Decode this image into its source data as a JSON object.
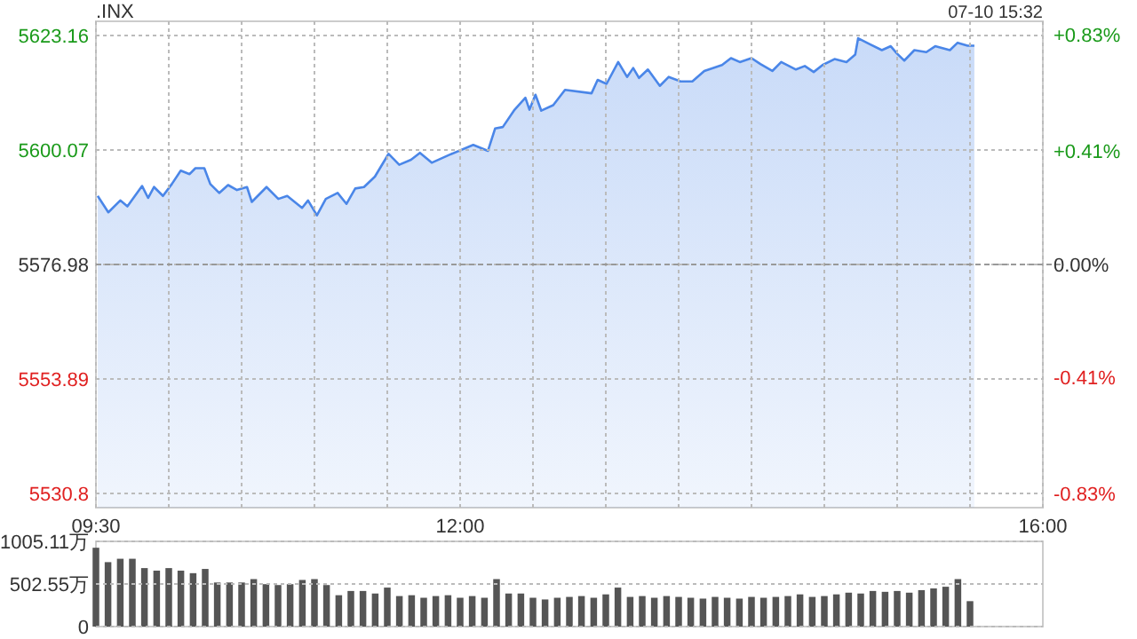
{
  "chart_data": [
    {
      "type": "area",
      "title": ".INX",
      "annotations": [
        "07-10 15:32"
      ],
      "x": [
        9.512,
        9.585,
        9.667,
        9.716,
        9.817,
        9.858,
        9.899,
        9.96,
        10.021,
        10.082,
        10.143,
        10.183,
        10.244,
        10.285,
        10.346,
        10.407,
        10.468,
        10.537,
        10.57,
        10.671,
        10.752,
        10.813,
        10.915,
        10.956,
        11.017,
        11.078,
        11.159,
        11.22,
        11.28,
        11.34,
        11.415,
        11.509,
        11.582,
        11.663,
        11.724,
        11.805,
        11.927,
        12.09,
        12.191,
        12.24,
        12.293,
        12.374,
        12.448,
        12.476,
        12.517,
        12.557,
        12.639,
        12.72,
        12.902,
        12.944,
        13.005,
        13.085,
        13.146,
        13.188,
        13.228,
        13.289,
        13.371,
        13.432,
        13.512,
        13.594,
        13.676,
        13.798,
        13.859,
        13.92,
        14.0,
        14.061,
        14.143,
        14.204,
        14.305,
        14.366,
        14.427,
        14.488,
        14.57,
        14.652,
        14.712,
        14.732,
        14.813,
        14.895,
        14.956,
        14.996,
        15.049,
        15.118,
        15.2,
        15.261,
        15.362,
        15.415,
        15.484,
        15.53
      ],
      "series": [
        {
          "color": "#4a86e8",
          "values": [
            5590.8,
            5587.5,
            5589.9,
            5588.7,
            5592.8,
            5590.4,
            5592.6,
            5590.8,
            5593.2,
            5595.9,
            5595.2,
            5596.4,
            5596.4,
            5593.2,
            5591.4,
            5593.0,
            5592.0,
            5592.6,
            5589.6,
            5592.6,
            5590.2,
            5590.8,
            5588.4,
            5589.9,
            5586.9,
            5590.2,
            5591.4,
            5589.2,
            5592.3,
            5592.6,
            5594.7,
            5599.3,
            5597.1,
            5598.1,
            5599.5,
            5597.5,
            5599.1,
            5601.1,
            5599.9,
            5604.4,
            5604.7,
            5608.2,
            5610.6,
            5608.2,
            5611.2,
            5608.0,
            5609.1,
            5612.2,
            5611.5,
            5614.2,
            5613.4,
            5617.8,
            5614.8,
            5616.6,
            5614.6,
            5616.3,
            5613.0,
            5614.8,
            5613.9,
            5613.9,
            5616.0,
            5617.2,
            5618.6,
            5617.8,
            5618.6,
            5617.4,
            5616.0,
            5617.8,
            5616.3,
            5617.0,
            5615.8,
            5617.2,
            5618.4,
            5617.8,
            5619.3,
            5622.6,
            5621.4,
            5620.2,
            5621.0,
            5619.6,
            5618.1,
            5620.2,
            5619.8,
            5621.0,
            5620.2,
            5621.7,
            5621.1,
            5621.1
          ]
        }
      ],
      "xlim": [
        9.5,
        16
      ],
      "xticks": [
        {
          "value": 9.5,
          "label": "09:30"
        },
        {
          "value": 10,
          "label": null
        },
        {
          "value": 10.5,
          "label": null
        },
        {
          "value": 11,
          "label": null
        },
        {
          "value": 11.5,
          "label": null
        },
        {
          "value": 12,
          "label": "12:00"
        },
        {
          "value": 12.5,
          "label": null
        },
        {
          "value": 13,
          "label": null
        },
        {
          "value": 13.5,
          "label": null
        },
        {
          "value": 14,
          "label": null
        },
        {
          "value": 14.5,
          "label": null
        },
        {
          "value": 15,
          "label": null
        },
        {
          "value": 15.5,
          "label": null
        },
        {
          "value": 16,
          "label": "16:00"
        }
      ],
      "ylim": [
        5527.94,
        5626.02
      ],
      "yticks": [
        5530.8,
        5553.89,
        5576.98,
        5600.07,
        5623.16
      ],
      "y2lim": [
        -0.88,
        0.88
      ],
      "y2ticks": [
        {
          "value": -0.83,
          "label": "-0.83%"
        },
        {
          "value": -0.41,
          "label": "-0.41%"
        },
        {
          "value": 0,
          "label": "0.00%"
        },
        {
          "value": 0.41,
          "label": "+0.41%"
        },
        {
          "value": 0.83,
          "label": "+0.83%"
        }
      ],
      "ref_lines": [
        {
          "axis": "y",
          "value": 5576.98,
          "color": "#999999",
          "line_style": "dashed"
        }
      ],
      "grid": true
    },
    {
      "type": "bar",
      "tick_labels": "y",
      "color": "#555555",
      "x": [
        9.5,
        9.583,
        9.667,
        9.75,
        9.833,
        9.917,
        10,
        10.083,
        10.167,
        10.25,
        10.333,
        10.417,
        10.5,
        10.583,
        10.667,
        10.75,
        10.833,
        10.917,
        11,
        11.083,
        11.167,
        11.25,
        11.333,
        11.417,
        11.5,
        11.583,
        11.667,
        11.75,
        11.833,
        11.917,
        12,
        12.083,
        12.167,
        12.25,
        12.333,
        12.417,
        12.5,
        12.583,
        12.667,
        12.75,
        12.833,
        12.917,
        13,
        13.083,
        13.167,
        13.25,
        13.333,
        13.417,
        13.5,
        13.583,
        13.667,
        13.75,
        13.833,
        13.917,
        14,
        14.083,
        14.167,
        14.25,
        14.333,
        14.417,
        14.5,
        14.583,
        14.667,
        14.75,
        14.833,
        14.917,
        15,
        15.083,
        15.167,
        15.25,
        15.333,
        15.417,
        15.5
      ],
      "values": [
        930,
        760,
        800,
        800,
        690,
        660,
        690,
        660,
        630,
        680,
        520,
        520,
        520,
        560,
        500,
        490,
        500,
        550,
        560,
        490,
        370,
        420,
        420,
        390,
        460,
        360,
        370,
        340,
        360,
        370,
        340,
        360,
        340,
        560,
        390,
        390,
        340,
        320,
        340,
        350,
        360,
        340,
        380,
        460,
        350,
        360,
        340,
        360,
        350,
        340,
        330,
        350,
        340,
        330,
        350,
        340,
        350,
        360,
        380,
        350,
        360,
        380,
        400,
        390,
        420,
        410,
        420,
        400,
        430,
        450,
        470,
        560,
        300
      ],
      "xlim": [
        9.5,
        16
      ],
      "ylim": [
        0,
        1005.11
      ],
      "yticks": [
        0,
        {
          "value": 502.55,
          "label": "502.55万"
        },
        {
          "value": 1005.11,
          "label": "1005.11万"
        }
      ],
      "grid": "y"
    }
  ]
}
